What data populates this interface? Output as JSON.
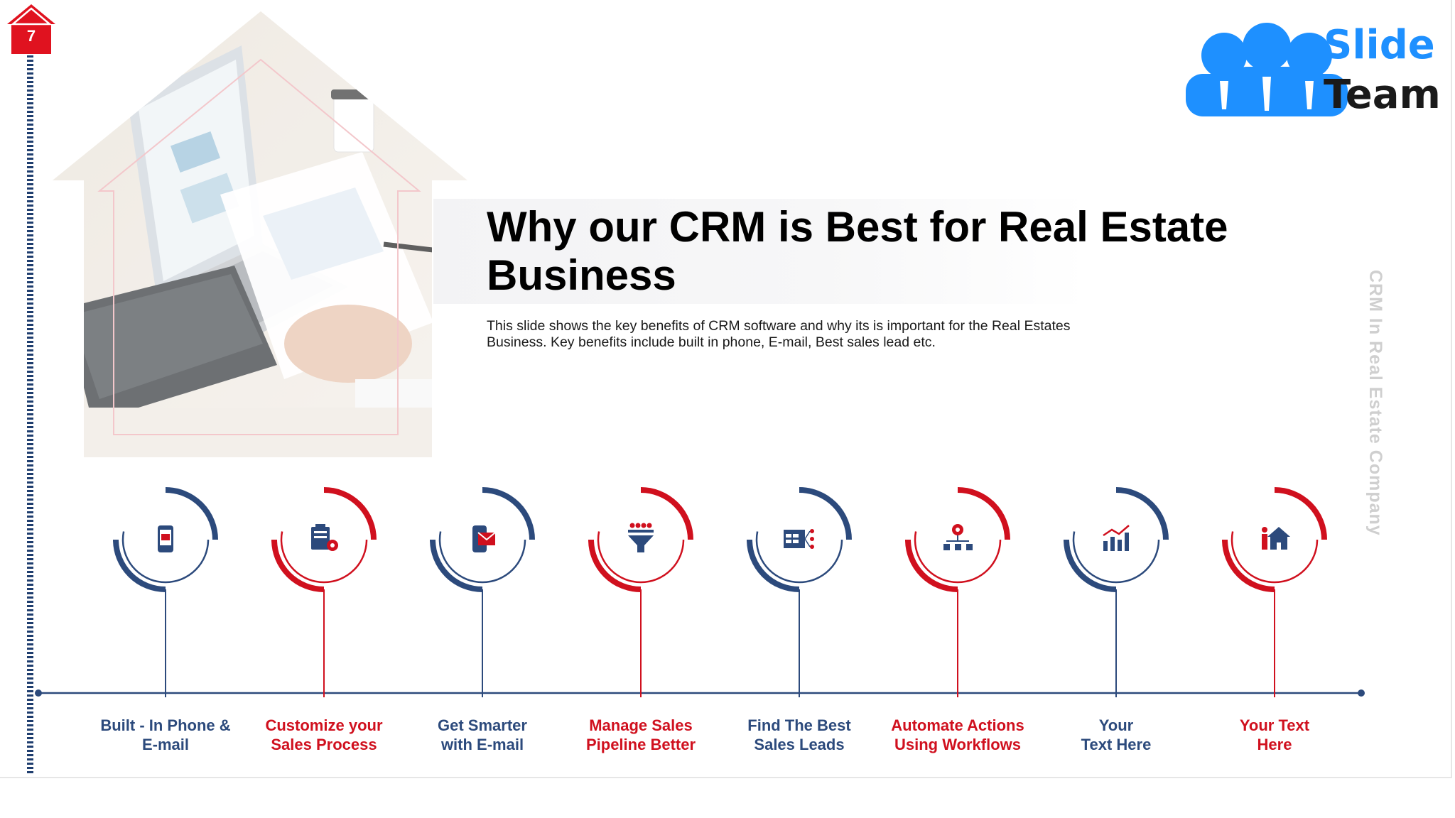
{
  "slide": {
    "page_number": "7",
    "title": "Why our CRM is Best for Real Estate Business",
    "description": "This slide shows the key benefits of CRM software and why its is important for the Real Estates Business. Key benefits include built in phone, E-mail, Best sales lead etc.",
    "side_caption": "CRM In Real Estate Company"
  },
  "logo": {
    "line1": "Slide",
    "line2": "Team",
    "line1_color": "#1e90ff",
    "line2_color": "#1a1a1a"
  },
  "colors": {
    "blue": "#2c4a7c",
    "red": "#d0101e",
    "navy": "#1f3e6f"
  },
  "steps": [
    {
      "label": "Built - In Phone &\nE-mail",
      "icon": "mobile-email-icon",
      "color": "blue"
    },
    {
      "label": "Customize your\nSales Process",
      "icon": "clipboard-gear-icon",
      "color": "red"
    },
    {
      "label": "Get Smarter\nwith E-mail",
      "icon": "phone-envelope-icon",
      "color": "blue"
    },
    {
      "label": "Manage Sales\nPipeline Better",
      "icon": "sales-funnel-icon",
      "color": "red"
    },
    {
      "label": "Find The Best\nSales Leads",
      "icon": "lead-table-icon",
      "color": "blue"
    },
    {
      "label": "Automate Actions\nUsing Workflows",
      "icon": "workflow-gear-icon",
      "color": "red"
    },
    {
      "label": "Your\nText Here",
      "icon": "bar-chart-icon",
      "color": "blue"
    },
    {
      "label": "Your Text\nHere",
      "icon": "person-house-icon",
      "color": "red"
    }
  ]
}
